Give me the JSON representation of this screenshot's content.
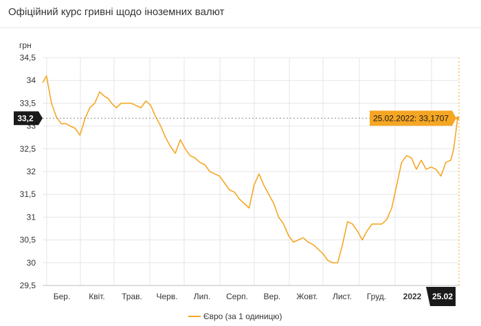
{
  "header": {
    "title": "Офіційний курс гривні щодо іноземних валют"
  },
  "chart_data": {
    "type": "line",
    "ylabel": "грн",
    "ylim": [
      29.5,
      34.5
    ],
    "y_ticks": [
      "34,5",
      "34",
      "33,5",
      "33",
      "32,5",
      "32",
      "31,5",
      "31",
      "30,5",
      "30",
      "29,5"
    ],
    "x_ticks": [
      "Бер.",
      "Квіт.",
      "Трав.",
      "Черв.",
      "Лип.",
      "Серп.",
      "Вер.",
      "Жовт.",
      "Лист.",
      "Груд.",
      "2022",
      "25.02"
    ],
    "highlight": {
      "y_label": "33,2",
      "tooltip": "25.02.2022: 33,1707",
      "x_label": "25.02",
      "value": 33.1707
    },
    "series": [
      {
        "name": "Євро (за 1 одиницю)",
        "color": "#f5a623",
        "points": [
          [
            0,
            33.95
          ],
          [
            4,
            34.1
          ],
          [
            9,
            33.5
          ],
          [
            14,
            33.2
          ],
          [
            19,
            33.05
          ],
          [
            24,
            33.05
          ],
          [
            28,
            33.0
          ],
          [
            33,
            32.95
          ],
          [
            38,
            32.8
          ],
          [
            43,
            33.15
          ],
          [
            48,
            33.4
          ],
          [
            53,
            33.5
          ],
          [
            58,
            33.75
          ],
          [
            63,
            33.65
          ],
          [
            67,
            33.6
          ],
          [
            70,
            33.5
          ],
          [
            75,
            33.4
          ],
          [
            80,
            33.5
          ],
          [
            85,
            33.5
          ],
          [
            90,
            33.5
          ],
          [
            95,
            33.45
          ],
          [
            100,
            33.4
          ],
          [
            105,
            33.55
          ],
          [
            110,
            33.45
          ],
          [
            115,
            33.2
          ],
          [
            120,
            33.0
          ],
          [
            125,
            32.75
          ],
          [
            130,
            32.55
          ],
          [
            135,
            32.4
          ],
          [
            140,
            32.7
          ],
          [
            145,
            32.5
          ],
          [
            150,
            32.35
          ],
          [
            155,
            32.3
          ],
          [
            160,
            32.2
          ],
          [
            165,
            32.15
          ],
          [
            170,
            32.0
          ],
          [
            175,
            31.95
          ],
          [
            180,
            31.9
          ],
          [
            185,
            31.75
          ],
          [
            190,
            31.6
          ],
          [
            195,
            31.55
          ],
          [
            200,
            31.4
          ],
          [
            205,
            31.3
          ],
          [
            210,
            31.2
          ],
          [
            215,
            31.7
          ],
          [
            220,
            31.95
          ],
          [
            225,
            31.7
          ],
          [
            230,
            31.5
          ],
          [
            235,
            31.3
          ],
          [
            240,
            31.0
          ],
          [
            245,
            30.85
          ],
          [
            250,
            30.6
          ],
          [
            255,
            30.45
          ],
          [
            260,
            30.5
          ],
          [
            265,
            30.55
          ],
          [
            270,
            30.45
          ],
          [
            275,
            30.4
          ],
          [
            280,
            30.3
          ],
          [
            285,
            30.2
          ],
          [
            290,
            30.05
          ],
          [
            295,
            30.0
          ],
          [
            300,
            30.0
          ],
          [
            305,
            30.4
          ],
          [
            310,
            30.9
          ],
          [
            315,
            30.85
          ],
          [
            320,
            30.7
          ],
          [
            325,
            30.5
          ],
          [
            330,
            30.7
          ],
          [
            335,
            30.85
          ],
          [
            340,
            30.85
          ],
          [
            345,
            30.85
          ],
          [
            350,
            30.95
          ],
          [
            355,
            31.2
          ],
          [
            360,
            31.7
          ],
          [
            365,
            32.2
          ],
          [
            370,
            32.35
          ],
          [
            375,
            32.3
          ],
          [
            380,
            32.05
          ],
          [
            385,
            32.25
          ],
          [
            390,
            32.05
          ],
          [
            395,
            32.1
          ],
          [
            400,
            32.05
          ],
          [
            405,
            31.9
          ],
          [
            410,
            32.2
          ],
          [
            415,
            32.25
          ],
          [
            418,
            32.5
          ],
          [
            422,
            33.1707
          ]
        ]
      }
    ]
  }
}
